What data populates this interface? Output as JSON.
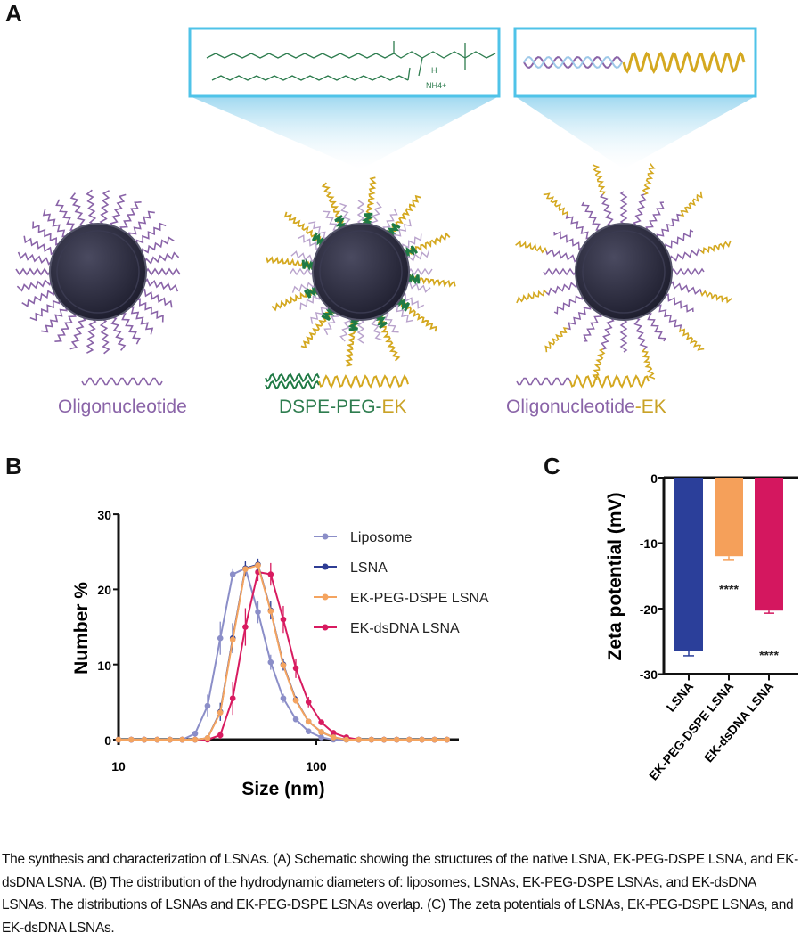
{
  "panels": {
    "a": "A",
    "b": "B",
    "c": "C"
  },
  "schematic": {
    "labels": [
      {
        "parts": [
          {
            "text": "Oligonucleotide",
            "color": "#8a64a8"
          }
        ]
      },
      {
        "parts": [
          {
            "text": "DSPE-PEG-",
            "color": "#2e7d4f"
          },
          {
            "text": "EK",
            "color": "#c9a227"
          }
        ]
      },
      {
        "parts": [
          {
            "text": "Oligonucleotide",
            "color": "#8a64a8"
          },
          {
            "text": "-EK",
            "color": "#c9a227"
          }
        ]
      }
    ],
    "chem_labels": {
      "nh4": "NH4+",
      "h": "H"
    }
  },
  "chart_data": [
    {
      "type": "line",
      "panel": "B",
      "xlabel": "Size (nm)",
      "ylabel": "Number %",
      "xscale": "log",
      "xlim": [
        10,
        470
      ],
      "ylim": [
        0,
        30
      ],
      "xticks": [
        "10",
        "100"
      ],
      "yticks": [
        "0",
        "10",
        "20",
        "30"
      ],
      "legend_placement": "top-right",
      "x": [
        10,
        11.6,
        13.5,
        15.7,
        18.2,
        21.0,
        24.4,
        28.2,
        32.7,
        37.8,
        43.8,
        50.7,
        58.8,
        68.1,
        78.8,
        91.3,
        106,
        122,
        142,
        164,
        190,
        220,
        255,
        295,
        342,
        396,
        458
      ],
      "series": [
        {
          "name": "Liposome",
          "color": "#8b8ec8",
          "values": [
            0,
            0,
            0,
            0,
            0,
            0,
            0.8,
            4.5,
            13.5,
            22,
            22.8,
            17,
            10.3,
            5.5,
            2.7,
            1.1,
            0.3,
            0,
            0,
            0,
            0,
            0,
            0,
            0,
            0,
            0,
            0
          ],
          "errors": [
            0,
            0,
            0,
            0,
            0,
            0,
            0.3,
            1.5,
            2.2,
            0.8,
            0.8,
            1.5,
            1,
            0.6,
            0.3,
            0.2,
            0,
            0,
            0,
            0,
            0,
            0,
            0,
            0,
            0,
            0,
            0
          ]
        },
        {
          "name": "LSNA",
          "color": "#2e3d94",
          "values": [
            0,
            0,
            0,
            0,
            0,
            0,
            0,
            0.2,
            3.7,
            13.5,
            22.8,
            23.3,
            17.2,
            10,
            5.3,
            2.4,
            1,
            0.3,
            0,
            0,
            0,
            0,
            0,
            0,
            0,
            0,
            0
          ],
          "errors": [
            0,
            0,
            0,
            0,
            0,
            0,
            0,
            0.1,
            1.2,
            2,
            1,
            0.8,
            1.2,
            0.8,
            0.5,
            0.3,
            0.1,
            0,
            0,
            0,
            0,
            0,
            0,
            0,
            0,
            0,
            0
          ]
        },
        {
          "name": "EK-PEG-DSPE LSNA",
          "color": "#f4a460",
          "values": [
            0,
            0,
            0,
            0,
            0,
            0,
            0,
            0.2,
            3.6,
            13.3,
            22.7,
            23.2,
            17.1,
            9.9,
            5.2,
            2.4,
            1,
            0.3,
            0,
            0,
            0,
            0,
            0,
            0,
            0,
            0,
            0
          ],
          "errors": [
            0,
            0,
            0,
            0,
            0,
            0,
            0,
            0,
            0,
            0,
            0,
            0,
            0,
            0,
            0,
            0,
            0,
            0,
            0,
            0,
            0,
            0,
            0,
            0,
            0,
            0,
            0
          ]
        },
        {
          "name": "EK-dsDNA LSNA",
          "color": "#d81b60",
          "values": [
            0,
            0,
            0,
            0,
            0,
            0,
            0,
            0,
            0.6,
            5.5,
            15,
            22.3,
            22,
            16,
            9.5,
            5,
            2.3,
            0.9,
            0.3,
            0,
            0,
            0,
            0,
            0,
            0,
            0,
            0
          ],
          "errors": [
            0,
            0,
            0,
            0,
            0,
            0,
            0,
            0,
            0.5,
            2.2,
            2.5,
            1.2,
            1.5,
            1.8,
            1.3,
            0.7,
            0.3,
            0.1,
            0,
            0,
            0,
            0,
            0,
            0,
            0,
            0,
            0
          ]
        }
      ]
    },
    {
      "type": "bar",
      "panel": "C",
      "ylabel": "Zeta potential (mV)",
      "ylim": [
        -30,
        0
      ],
      "yticks": [
        "0",
        "-10",
        "-20",
        "-30"
      ],
      "categories": [
        "LSNA",
        "EK-PEG-DSPE LSNA",
        "EK-dsDNA LSNA"
      ],
      "values": [
        -26.5,
        -12,
        -20.3
      ],
      "errors": [
        0.7,
        0.5,
        0.4
      ],
      "colors": [
        "#2b3f9a",
        "#f5a05a",
        "#d4175f"
      ],
      "annotations": [
        "",
        "****",
        "****"
      ]
    }
  ],
  "caption": {
    "before": "The synthesis and characterization of LSNAs. (A) Schematic showing the structures of the native LSNA, EK-PEG-DSPE LSNA, and EK-dsDNA LSNA. (B) The distribution of the hydrodynamic diameters ",
    "underlined": "of:",
    "after": " liposomes, LSNAs, EK-PEG-DSPE LSNAs, and EK-dsDNA LSNAs. The distributions of LSNAs and EK-PEG-DSPE LSNAs overlap. (C) The zeta potentials of LSNAs, EK-PEG-DSPE LSNAs, and EK-dsDNA LSNAs."
  }
}
